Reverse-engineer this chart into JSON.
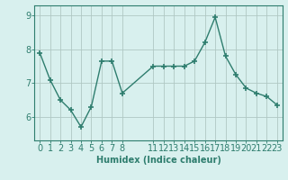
{
  "x": [
    0,
    1,
    2,
    3,
    4,
    5,
    6,
    7,
    8,
    11,
    12,
    13,
    14,
    15,
    16,
    17,
    18,
    19,
    20,
    21,
    22,
    23
  ],
  "y": [
    7.9,
    7.1,
    6.5,
    6.2,
    5.7,
    6.3,
    7.65,
    7.65,
    6.7,
    7.5,
    7.5,
    7.5,
    7.5,
    7.65,
    8.2,
    8.95,
    7.8,
    7.25,
    6.85,
    6.7,
    6.6,
    6.35
  ],
  "line_color": "#2e7d6e",
  "marker": "+",
  "marker_size": 5,
  "bg_color": "#d8f0ee",
  "grid_color": "#b0c8c4",
  "xlabel": "Humidex (Indice chaleur)",
  "xlabel_fontsize": 7,
  "xticks": [
    0,
    1,
    2,
    3,
    4,
    5,
    6,
    7,
    8,
    11,
    12,
    13,
    14,
    15,
    16,
    17,
    18,
    19,
    20,
    21,
    22,
    23
  ],
  "xtick_labels": [
    "0",
    "1",
    "2",
    "3",
    "4",
    "5",
    "6",
    "7",
    "8",
    "11",
    "12",
    "13",
    "14",
    "15",
    "16",
    "17",
    "18",
    "19",
    "20",
    "21",
    "22",
    "23"
  ],
  "ylim": [
    5.3,
    9.3
  ],
  "yticks": [
    6,
    7,
    8,
    9
  ],
  "ytick_labels": [
    "6",
    "7",
    "8",
    "9"
  ],
  "tick_fontsize": 7,
  "line_width": 1.0,
  "xlim": [
    -0.5,
    23.5
  ]
}
